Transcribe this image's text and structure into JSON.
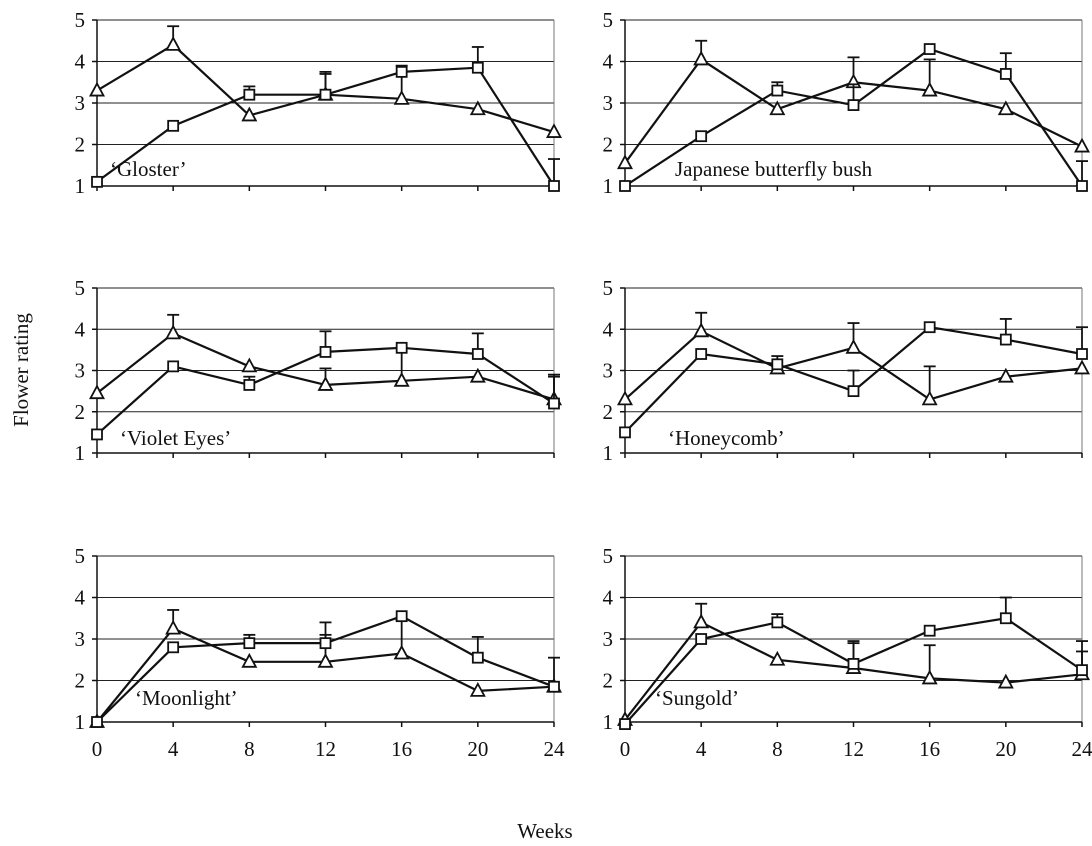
{
  "ylabel": "Flower rating",
  "xlabel": "Weeks",
  "chart_data": [
    {
      "type": "line",
      "label": "‘Gloster’",
      "x": [
        0,
        4,
        8,
        12,
        16,
        20,
        24
      ],
      "ylim": [
        1,
        5
      ],
      "series": [
        {
          "marker": "triangle",
          "values": [
            3.3,
            4.4,
            2.7,
            3.2,
            3.1,
            2.85,
            2.3
          ],
          "err": [
            0,
            0.45,
            0,
            0.55,
            0.8,
            0,
            0
          ]
        },
        {
          "marker": "square",
          "values": [
            1.1,
            2.45,
            3.2,
            3.2,
            3.75,
            3.85,
            1.0
          ],
          "err": [
            0,
            0,
            0.2,
            0.5,
            0,
            0.5,
            0.65
          ]
        }
      ]
    },
    {
      "type": "line",
      "label": "Japanese butterfly bush",
      "x": [
        0,
        4,
        8,
        12,
        16,
        20,
        24
      ],
      "ylim": [
        1,
        5
      ],
      "series": [
        {
          "marker": "triangle",
          "values": [
            1.55,
            4.05,
            2.85,
            3.5,
            3.3,
            2.85,
            1.95
          ],
          "err": [
            0,
            0.45,
            0,
            0.6,
            0.75,
            0,
            0
          ]
        },
        {
          "marker": "square",
          "values": [
            1.0,
            2.2,
            3.3,
            2.95,
            4.3,
            3.7,
            1.0
          ],
          "err": [
            0,
            0,
            0.2,
            0.5,
            0,
            0.5,
            0.6
          ]
        }
      ]
    },
    {
      "type": "line",
      "label": "‘Violet Eyes’",
      "x": [
        0,
        4,
        8,
        12,
        16,
        20,
        24
      ],
      "ylim": [
        1,
        5
      ],
      "series": [
        {
          "marker": "triangle",
          "values": [
            2.45,
            3.9,
            3.1,
            2.65,
            2.75,
            2.85,
            2.3
          ],
          "err": [
            0,
            0.45,
            0,
            0.4,
            0.8,
            0,
            0.55
          ]
        },
        {
          "marker": "square",
          "values": [
            1.45,
            3.1,
            2.65,
            3.45,
            3.55,
            3.4,
            2.2
          ],
          "err": [
            0,
            0,
            0.2,
            0.5,
            0,
            0.5,
            0.7
          ]
        }
      ]
    },
    {
      "type": "line",
      "label": "‘Honeycomb’",
      "x": [
        0,
        4,
        8,
        12,
        16,
        20,
        24
      ],
      "ylim": [
        1,
        5
      ],
      "series": [
        {
          "marker": "triangle",
          "values": [
            2.3,
            3.95,
            3.05,
            3.55,
            2.3,
            2.85,
            3.05
          ],
          "err": [
            0,
            0.45,
            0,
            0.6,
            0.8,
            0,
            0
          ]
        },
        {
          "marker": "square",
          "values": [
            1.5,
            3.4,
            3.15,
            2.5,
            4.05,
            3.75,
            3.4
          ],
          "err": [
            0,
            0,
            0.2,
            0.5,
            0,
            0.5,
            0.65
          ]
        }
      ]
    },
    {
      "type": "line",
      "label": "‘Moonlight’",
      "x": [
        0,
        4,
        8,
        12,
        16,
        20,
        24
      ],
      "ylim": [
        1,
        5
      ],
      "series": [
        {
          "marker": "triangle",
          "values": [
            1.0,
            3.25,
            2.45,
            2.45,
            2.65,
            1.75,
            1.85
          ],
          "err": [
            0,
            0.45,
            0,
            0.65,
            0.8,
            0,
            0
          ]
        },
        {
          "marker": "square",
          "values": [
            1.0,
            2.8,
            2.9,
            2.9,
            3.55,
            2.55,
            1.85
          ],
          "err": [
            0,
            0,
            0.2,
            0.5,
            0,
            0.5,
            0.7
          ]
        }
      ]
    },
    {
      "type": "line",
      "label": "‘Sungold’",
      "x": [
        0,
        4,
        8,
        12,
        16,
        20,
        24
      ],
      "ylim": [
        1,
        5
      ],
      "series": [
        {
          "marker": "triangle",
          "values": [
            1.05,
            3.4,
            2.5,
            2.3,
            2.05,
            1.95,
            2.15
          ],
          "err": [
            0,
            0.45,
            0,
            0.65,
            0.8,
            0,
            0.55
          ]
        },
        {
          "marker": "square",
          "values": [
            0.95,
            3.0,
            3.4,
            2.4,
            3.2,
            3.5,
            2.25
          ],
          "err": [
            0,
            0,
            0.2,
            0.5,
            0,
            0.5,
            0.7
          ]
        }
      ]
    }
  ]
}
